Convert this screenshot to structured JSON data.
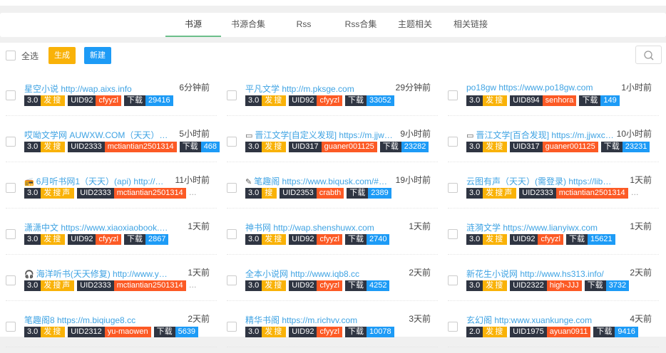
{
  "tabs": [
    "书源",
    "书源合集",
    "Rss",
    "Rss合集",
    "主题相关",
    "相关链接"
  ],
  "active_tab": 0,
  "toolbar": {
    "select_all": "全选",
    "generate": "生成",
    "new": "新建",
    "generate_color": "#f9b208",
    "new_color": "#1d9bf6"
  },
  "download_label": "下载",
  "items": [
    {
      "icon": "",
      "title": "星空小说 http://wap.aixs.info",
      "time": "6分钟前",
      "ver": "3.0",
      "flags": "发搜",
      "uid": "UID92",
      "author": "cfyyzl",
      "dl": "29416"
    },
    {
      "icon": "",
      "title": "平凡文学 http://m.pksge.com",
      "time": "29分钟前",
      "ver": "3.0",
      "flags": "发搜",
      "uid": "UID92",
      "author": "cfyyzl",
      "dl": "33052"
    },
    {
      "icon": "",
      "title": "po18gw https://www.po18gw.com",
      "time": "1小时前",
      "ver": "3.0",
      "flags": "发搜",
      "uid": "UID894",
      "author": "senhora",
      "dl": "149"
    },
    {
      "icon": "",
      "title": "哎呦文学网 AUWXW.COM（天天）…",
      "time": "5小时前",
      "ver": "3.0",
      "flags": "发搜",
      "uid": "UID2333",
      "author": "mctiantian2501314",
      "dl": "468"
    },
    {
      "icon": "link",
      "title": "晋江文学[自定义发现] https://m.jjw…",
      "time": "9小时前",
      "ver": "3.0",
      "flags": "发搜",
      "uid": "UID317",
      "author": "guaner001125",
      "dl": "23282"
    },
    {
      "icon": "link",
      "title": "晋江文学[百合发现] https://m.jjwxc…",
      "time": "10小时前",
      "ver": "3.0",
      "flags": "发搜",
      "uid": "UID317",
      "author": "guaner001125",
      "dl": "23231"
    },
    {
      "icon": "radio",
      "title": "6月听书网1（天天）(api) http://…",
      "time": "11小时前",
      "ver": "3.0",
      "flags": "发搜声",
      "uid": "UID2333",
      "author": "mctiantian2501314",
      "dl": "",
      "more": "…"
    },
    {
      "icon": "pencil",
      "title": "笔趣阁 https://www.biqusk.com/#…",
      "time": "19小时前",
      "ver": "3.0",
      "flags": "搜",
      "uid": "UID2353",
      "author": "crabth",
      "dl": "2389"
    },
    {
      "icon": "",
      "title": "云图有声（天天）(需登录) https://lib…",
      "time": "1天前",
      "ver": "3.0",
      "flags": "发搜声",
      "uid": "UID2333",
      "author": "mctiantian2501314",
      "dl": "",
      "more": "…"
    },
    {
      "icon": "",
      "title": "潇潇中文 https://www.xiaoxiaobook.…",
      "time": "1天前",
      "ver": "3.0",
      "flags": "发搜",
      "uid": "UID92",
      "author": "cfyyzl",
      "dl": "2867"
    },
    {
      "icon": "",
      "title": "神书网 http://wap.shenshuwx.com",
      "time": "1天前",
      "ver": "3.0",
      "flags": "发搜",
      "uid": "UID92",
      "author": "cfyyzl",
      "dl": "2740"
    },
    {
      "icon": "",
      "title": "涟漪文学 https://www.lianyiwx.com",
      "time": "1天前",
      "ver": "3.0",
      "flags": "发搜",
      "uid": "UID92",
      "author": "cfyyzl",
      "dl": "15621"
    },
    {
      "icon": "headphones",
      "title": "海洋听书(天天修复) http://www.y…",
      "time": "1天前",
      "ver": "3.0",
      "flags": "发搜声",
      "uid": "UID2333",
      "author": "mctiantian2501314",
      "dl": "",
      "more": "…"
    },
    {
      "icon": "",
      "title": "全本小说网 http://www.iqb8.cc",
      "time": "2天前",
      "ver": "3.0",
      "flags": "发搜",
      "uid": "UID92",
      "author": "cfyyzl",
      "dl": "4252"
    },
    {
      "icon": "",
      "title": "新花生小说网 http://www.hs313.info/",
      "time": "2天前",
      "ver": "3.0",
      "flags": "发搜",
      "uid": "UID2322",
      "author": "high-JJJ",
      "dl": "3732"
    },
    {
      "icon": "",
      "title": "笔趣阁8 https://m.biqiuge8.cc",
      "time": "2天前",
      "ver": "3.0",
      "flags": "发搜",
      "uid": "UID2312",
      "author": "yu-maowen",
      "dl": "5639"
    },
    {
      "icon": "",
      "title": "精华书阁 https://m.richvv.com",
      "time": "3天前",
      "ver": "3.0",
      "flags": "发搜",
      "uid": "UID92",
      "author": "cfyyzl",
      "dl": "10078"
    },
    {
      "icon": "",
      "title": "玄幻阁 http:www.xuankunge.com",
      "time": "4天前",
      "ver": "2.0",
      "flags": "发搜",
      "uid": "UID1975",
      "author": "ayuan0911",
      "dl": "9416"
    }
  ]
}
